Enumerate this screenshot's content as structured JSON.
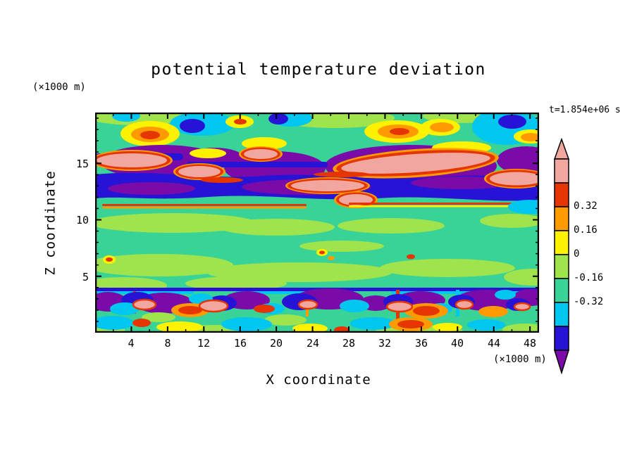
{
  "header": {
    "title": "potential temperature deviation",
    "timestamp": "t=1.854e+06 s"
  },
  "axes": {
    "y_units_label": "(×1000 m)",
    "x_units_label": "(×1000 m)",
    "y_axis_label": "Z coordinate",
    "x_axis_label": "X coordinate",
    "x_ticks": [
      "4",
      "8",
      "12",
      "16",
      "20",
      "24",
      "28",
      "32",
      "36",
      "40",
      "44",
      "48"
    ],
    "y_ticks": [
      "15",
      "10",
      "5"
    ]
  },
  "colorbar": {
    "labels": [
      "0.32",
      "0.16",
      "0",
      "-0.16",
      "-0.32"
    ]
  },
  "chart_data": {
    "type": "heatmap",
    "subtype": "filled-contour",
    "title": "potential temperature deviation",
    "xlabel": "X coordinate",
    "ylabel": "Z coordinate",
    "x_units": "(×1000 m)",
    "y_units": "(×1000 m)",
    "time_annotation": "t=1.854e+06 s",
    "xlim": [
      0,
      49
    ],
    "ylim": [
      0,
      19.5
    ],
    "x_tick_values": [
      4,
      8,
      12,
      16,
      20,
      24,
      28,
      32,
      36,
      40,
      44,
      48
    ],
    "y_tick_values": [
      5,
      10,
      15
    ],
    "grid": false,
    "legend_position": "right-colorbar",
    "contour_levels": [
      -0.32,
      -0.16,
      0,
      0.16,
      0.32
    ],
    "colorbar": {
      "labels": [
        0.32,
        0.16,
        0,
        -0.16,
        -0.32
      ],
      "colors_top_to_bottom": [
        "#f1a79f",
        "#e53500",
        "#ff9b00",
        "#fff200",
        "#9fe34d",
        "#3ad397",
        "#00c6f0",
        "#2613d6",
        "#7a0ba8"
      ],
      "over_color": "#f1a79f",
      "under_color": "#7a0ba8",
      "arrow_ends": true
    },
    "field_background_value_band": "0 to -0.16 (spring green)",
    "features": [
      "Strong wavy anomaly band between z ≈ 12 and 17 (×1000 m): elongated positive (pink/red, > 0.32) lenses interleaved with deep negative (dark blue/purple, < -0.32) layers spanning the full x range",
      "Quiescent mid layer between z ≈ 4 and 12 (×1000 m): near-zero values, spring-green background with light-green (0 to 0.16) patches and a few tiny positive specks",
      "Turbulent near-surface layer below z ≈ 3 (×1000 m): alternating small-scale positive (pink/red/orange) and negative (cyan/blue/purple) cells across all x",
      "Scattered positive (yellow/orange/red) and negative (cyan/blue) blobs along the top boundary near z ≈ 19 (×1000 m)"
    ]
  }
}
